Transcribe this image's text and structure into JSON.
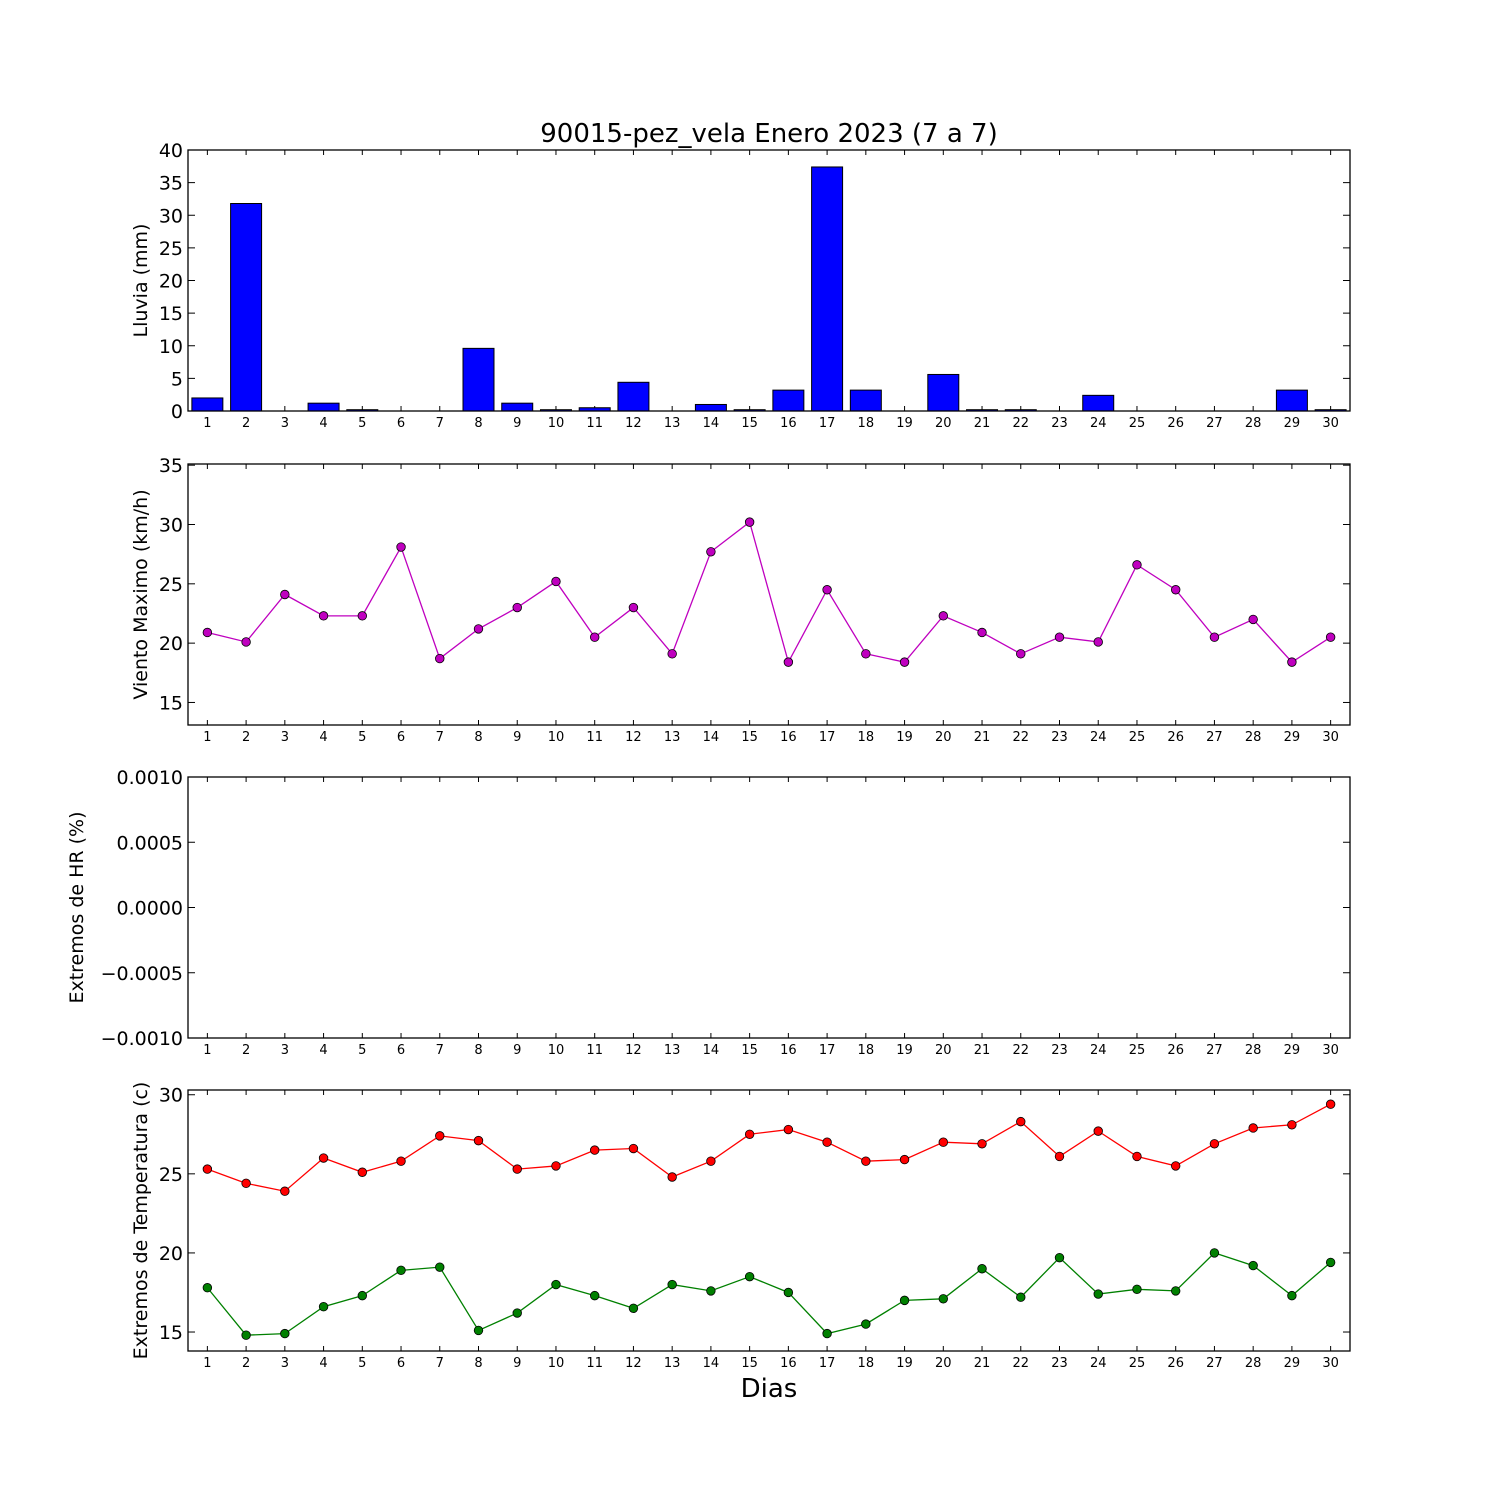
{
  "title": "90015-pez_vela Enero 2023  (7 a 7)",
  "xlabel": "Dias",
  "colors": {
    "bar": "#0000ff",
    "wind": "#bf00bf",
    "tmax": "#ff0000",
    "tmin": "#008000"
  },
  "chart_data": [
    {
      "type": "bar",
      "ylabel": "Lluvia (mm)",
      "x": [
        1,
        2,
        3,
        4,
        5,
        6,
        7,
        8,
        9,
        10,
        11,
        12,
        13,
        14,
        15,
        16,
        17,
        18,
        19,
        20,
        21,
        22,
        23,
        24,
        25,
        26,
        27,
        28,
        29,
        30
      ],
      "values": [
        2.0,
        31.8,
        0,
        1.2,
        0.2,
        0,
        0,
        9.6,
        1.2,
        0.2,
        0.5,
        4.4,
        0,
        1.0,
        0.2,
        3.2,
        37.4,
        3.2,
        0,
        5.6,
        0.2,
        0.2,
        0,
        2.4,
        0,
        0,
        0,
        0,
        3.2,
        0.2
      ],
      "ylim": [
        0,
        40
      ],
      "yticks": [
        "0",
        "5",
        "10",
        "15",
        "20",
        "25",
        "30",
        "35",
        "40"
      ]
    },
    {
      "type": "line",
      "ylabel": "Viento Maximo (km/h)",
      "x": [
        1,
        2,
        3,
        4,
        5,
        6,
        7,
        8,
        9,
        10,
        11,
        12,
        13,
        14,
        15,
        16,
        17,
        18,
        19,
        20,
        21,
        22,
        23,
        24,
        25,
        26,
        27,
        28,
        29,
        30
      ],
      "values": [
        20.9,
        20.1,
        24.1,
        22.3,
        22.3,
        28.1,
        18.7,
        21.2,
        23.0,
        25.2,
        20.5,
        23.0,
        19.1,
        27.7,
        30.2,
        18.4,
        24.5,
        19.1,
        18.4,
        22.3,
        20.9,
        19.1,
        20.5,
        20.1,
        26.6,
        24.5,
        20.5,
        22.0,
        18.4,
        20.5
      ],
      "ylim": [
        13.1,
        35.1
      ],
      "yticks": [
        "15",
        "20",
        "25",
        "30",
        "35"
      ]
    },
    {
      "type": "line",
      "ylabel": "Extremos de HR (%)",
      "x": [
        1,
        2,
        3,
        4,
        5,
        6,
        7,
        8,
        9,
        10,
        11,
        12,
        13,
        14,
        15,
        16,
        17,
        18,
        19,
        20,
        21,
        22,
        23,
        24,
        25,
        26,
        27,
        28,
        29,
        30
      ],
      "series": [],
      "ylim": [
        -0.001,
        0.001
      ],
      "yticks": [
        "−0.0010",
        "−0.0005",
        "0.0000",
        "0.0005",
        "0.0010"
      ]
    },
    {
      "type": "line",
      "ylabel": "Extremos de Temperatura (c)",
      "x": [
        1,
        2,
        3,
        4,
        5,
        6,
        7,
        8,
        9,
        10,
        11,
        12,
        13,
        14,
        15,
        16,
        17,
        18,
        19,
        20,
        21,
        22,
        23,
        24,
        25,
        26,
        27,
        28,
        29,
        30
      ],
      "series": [
        {
          "values": [
            25.3,
            24.4,
            23.9,
            26.0,
            25.1,
            25.8,
            27.4,
            27.1,
            25.3,
            25.5,
            26.5,
            26.6,
            24.8,
            25.8,
            27.5,
            27.8,
            27.0,
            25.8,
            25.9,
            27.0,
            26.9,
            28.3,
            26.1,
            27.7,
            26.1,
            25.5,
            26.9,
            27.9,
            28.1,
            29.4
          ]
        },
        {
          "values": [
            17.8,
            14.8,
            14.9,
            16.6,
            17.3,
            18.9,
            19.1,
            15.1,
            16.2,
            18.0,
            17.3,
            16.5,
            18.0,
            17.6,
            18.5,
            17.5,
            14.9,
            15.5,
            17.0,
            17.1,
            19.0,
            17.2,
            19.7,
            17.4,
            17.7,
            17.6,
            20.0,
            19.2,
            17.3,
            19.4
          ]
        }
      ],
      "ylim": [
        13.8,
        30.3
      ],
      "yticks": [
        "15",
        "20",
        "25",
        "30"
      ]
    }
  ]
}
